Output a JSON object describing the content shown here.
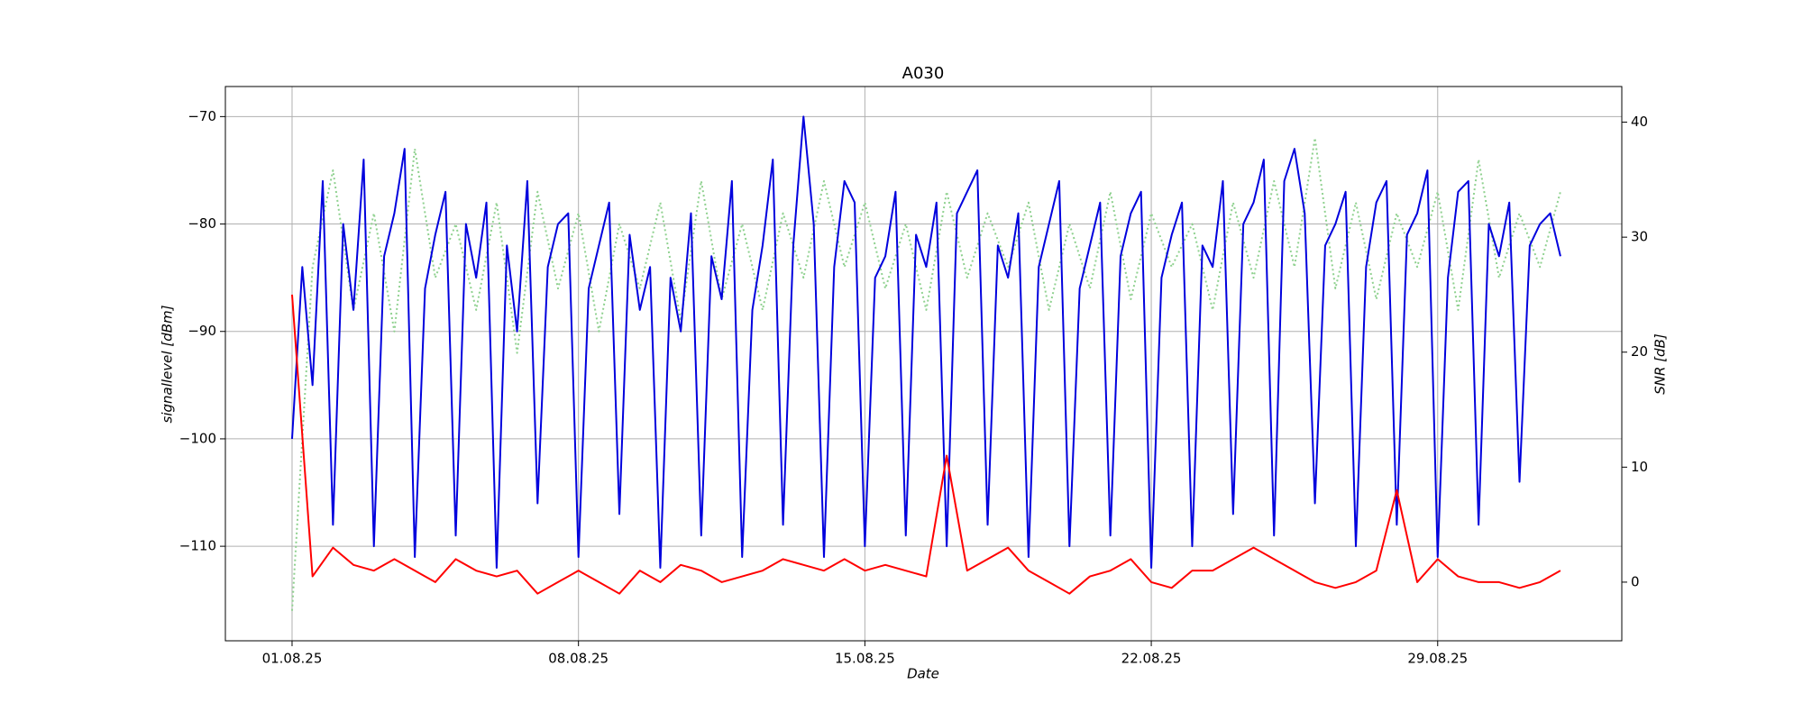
{
  "chart_data": {
    "type": "line",
    "title": "A030",
    "x_label": "Date",
    "y_label": "signallevel [dBm]",
    "y2_label": "SNR [dB]",
    "xlim": [
      -1.63,
      32.5
    ],
    "ylim": [
      -118.8,
      -67.2
    ],
    "y2lim": [
      -5.1,
      43.1
    ],
    "xticks": [
      {
        "value": 0,
        "label": "01.08.25"
      },
      {
        "value": 7,
        "label": "08.08.25"
      },
      {
        "value": 14,
        "label": "15.08.25"
      },
      {
        "value": 21,
        "label": "22.08.25"
      },
      {
        "value": 28,
        "label": "29.08.25"
      }
    ],
    "yticks": [
      {
        "value": -70,
        "label": "−70"
      },
      {
        "value": -80,
        "label": "−80"
      },
      {
        "value": -90,
        "label": "−90"
      },
      {
        "value": -100,
        "label": "−100"
      },
      {
        "value": -110,
        "label": "−110"
      }
    ],
    "y2ticks": [
      0,
      10,
      20,
      30,
      40
    ],
    "grid": true,
    "series": [
      {
        "color": "#8fd18f",
        "dotted": true,
        "x": [
          0,
          0.5,
          1,
          1.5,
          2,
          2.5,
          3,
          3.5,
          4,
          4.5,
          5,
          5.5,
          6,
          6.5,
          7,
          7.5,
          8,
          8.5,
          9,
          9.5,
          10,
          10.5,
          11,
          11.5,
          12,
          12.5,
          13,
          13.5,
          14,
          14.5,
          15,
          15.5,
          16,
          16.5,
          17,
          17.5,
          18,
          18.5,
          19,
          19.5,
          20,
          20.5,
          21,
          21.5,
          22,
          22.5,
          23,
          23.5,
          24,
          24.5,
          25,
          25.5,
          26,
          26.5,
          27,
          27.5,
          28,
          28.5,
          29,
          29.5,
          30,
          30.5,
          31
        ],
        "values": [
          -116,
          -84,
          -75,
          -88,
          -79,
          -90,
          -73,
          -85,
          -80,
          -88,
          -78,
          -92,
          -77,
          -86,
          -79,
          -90,
          -80,
          -86,
          -78,
          -89,
          -76,
          -87,
          -80,
          -88,
          -79,
          -85,
          -76,
          -84,
          -78,
          -86,
          -80,
          -88,
          -77,
          -85,
          -79,
          -84,
          -78,
          -88,
          -80,
          -86,
          -77,
          -87,
          -79,
          -84,
          -80,
          -88,
          -78,
          -85,
          -76,
          -84,
          -72,
          -86,
          -78,
          -87,
          -79,
          -84,
          -77,
          -88,
          -74,
          -85,
          -79,
          -84,
          -77
        ]
      },
      {
        "color": "#0000dd",
        "x": [
          0,
          0.25,
          0.5,
          0.75,
          1,
          1.25,
          1.5,
          1.75,
          2,
          2.25,
          2.5,
          2.75,
          3,
          3.25,
          3.5,
          3.75,
          4,
          4.25,
          4.5,
          4.75,
          5,
          5.25,
          5.5,
          5.75,
          6,
          6.25,
          6.5,
          6.75,
          7,
          7.25,
          7.5,
          7.75,
          8,
          8.25,
          8.5,
          8.75,
          9,
          9.25,
          9.5,
          9.75,
          10,
          10.25,
          10.5,
          10.75,
          11,
          11.25,
          11.5,
          11.75,
          12,
          12.25,
          12.5,
          12.75,
          13,
          13.25,
          13.5,
          13.75,
          14,
          14.25,
          14.5,
          14.75,
          15,
          15.25,
          15.5,
          15.75,
          16,
          16.25,
          16.5,
          16.75,
          17,
          17.25,
          17.5,
          17.75,
          18,
          18.25,
          18.5,
          18.75,
          19,
          19.25,
          19.5,
          19.75,
          20,
          20.25,
          20.5,
          20.75,
          21,
          21.25,
          21.5,
          21.75,
          22,
          22.25,
          22.5,
          22.75,
          23,
          23.25,
          23.5,
          23.75,
          24,
          24.25,
          24.5,
          24.75,
          25,
          25.25,
          25.5,
          25.75,
          26,
          26.25,
          26.5,
          26.75,
          27,
          27.25,
          27.5,
          27.75,
          28,
          28.25,
          28.5,
          28.75,
          29,
          29.25,
          29.5,
          29.75,
          30,
          30.25,
          30.5,
          30.75,
          31
        ],
        "values": [
          -100,
          -84,
          -95,
          -76,
          -108,
          -80,
          -88,
          -74,
          -110,
          -83,
          -79,
          -73,
          -111,
          -86,
          -81,
          -77,
          -109,
          -80,
          -85,
          -78,
          -112,
          -82,
          -90,
          -76,
          -106,
          -84,
          -80,
          -79,
          -111,
          -86,
          -82,
          -78,
          -107,
          -81,
          -88,
          -84,
          -112,
          -85,
          -90,
          -79,
          -109,
          -83,
          -87,
          -76,
          -111,
          -88,
          -82,
          -74,
          -108,
          -82,
          -70,
          -80,
          -111,
          -84,
          -76,
          -78,
          -110,
          -85,
          -83,
          -77,
          -109,
          -81,
          -84,
          -78,
          -110,
          -79,
          -77,
          -75,
          -108,
          -82,
          -85,
          -79,
          -111,
          -84,
          -80,
          -76,
          -110,
          -86,
          -82,
          -78,
          -109,
          -83,
          -79,
          -77,
          -112,
          -85,
          -81,
          -78,
          -110,
          -82,
          -84,
          -76,
          -107,
          -80,
          -78,
          -74,
          -109,
          -76,
          -73,
          -79,
          -106,
          -82,
          -80,
          -77,
          -110,
          -84,
          -78,
          -76,
          -108,
          -81,
          -79,
          -75,
          -111,
          -85,
          -77,
          -76,
          -108,
          -80,
          -83,
          -78,
          -104,
          -82,
          -80,
          -79,
          -83
        ]
      },
      {
        "color": "#ff0000",
        "axis": "y2",
        "x": [
          0,
          0.5,
          1,
          1.5,
          2,
          2.5,
          3,
          3.5,
          4,
          4.5,
          5,
          5.5,
          6,
          6.5,
          7,
          7.5,
          8,
          8.5,
          9,
          9.5,
          10,
          10.5,
          11,
          11.5,
          12,
          12.5,
          13,
          13.5,
          14,
          14.5,
          15,
          15.5,
          16,
          16.5,
          17,
          17.5,
          18,
          18.5,
          19,
          19.5,
          20,
          20.5,
          21,
          21.5,
          22,
          22.5,
          23,
          23.5,
          24,
          24.5,
          25,
          25.5,
          26,
          26.5,
          27,
          27.5,
          28,
          28.5,
          29,
          29.5,
          30,
          30.5,
          31
        ],
        "values": [
          25,
          0.5,
          3,
          1.5,
          1,
          2,
          1,
          0,
          2,
          1,
          0.5,
          1,
          -1,
          0,
          1,
          0,
          -1,
          1,
          0,
          1.5,
          1,
          0,
          0.5,
          1,
          2,
          1.5,
          1,
          2,
          1,
          1.5,
          1,
          0.5,
          11,
          1,
          2,
          3,
          1,
          0,
          -1,
          0.5,
          1,
          2,
          0,
          -0.5,
          1,
          1,
          2,
          3,
          2,
          1,
          0,
          -0.5,
          0,
          1,
          8,
          0,
          2,
          0.5,
          0,
          0,
          -0.5,
          0,
          1
        ]
      }
    ]
  }
}
